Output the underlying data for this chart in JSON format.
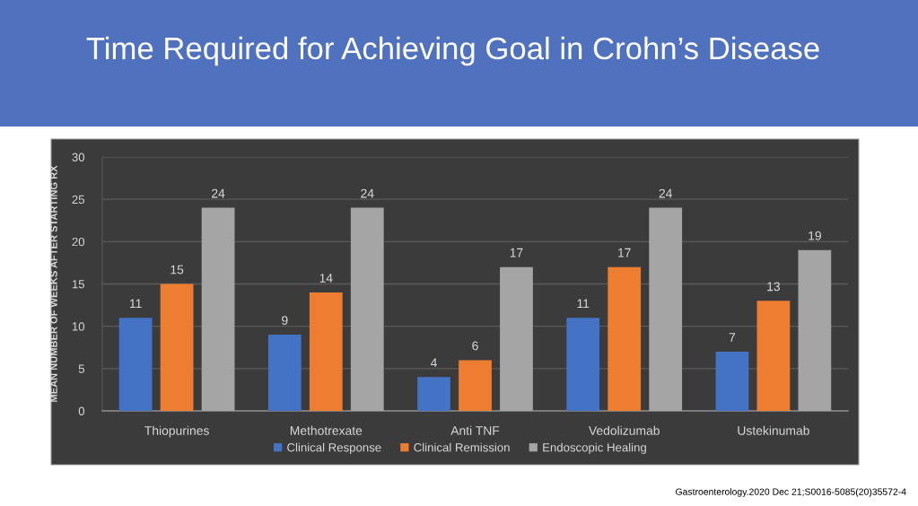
{
  "chart_data": {
    "type": "bar",
    "title": "Time Required for Achieving Goal in Crohn’s Disease",
    "ylabel": "MEAN NUMBER OF WEEKS AFTER STARTING RX",
    "categories": [
      "Thiopurines",
      "Methotrexate",
      "Anti TNF",
      "Vedolizumab",
      "Ustekinumab"
    ],
    "series": [
      {
        "name": "Clinical Response",
        "color": "#4472c4",
        "values": [
          11,
          9,
          4,
          11,
          7
        ]
      },
      {
        "name": "Clinical Remission",
        "color": "#ed7d31",
        "values": [
          15,
          14,
          6,
          17,
          13
        ]
      },
      {
        "name": "Endoscopic Healing",
        "color": "#a5a5a5",
        "values": [
          24,
          24,
          17,
          24,
          19
        ]
      }
    ],
    "ylim": [
      0,
      30
    ],
    "yticks": [
      0,
      5,
      10,
      15,
      20,
      25,
      30
    ],
    "grid": "y",
    "legend": "bottom",
    "data_labels": true,
    "annotations": [
      "Gastroenterology.2020 Dec 21;S0016-5085(20)35572-4"
    ]
  }
}
